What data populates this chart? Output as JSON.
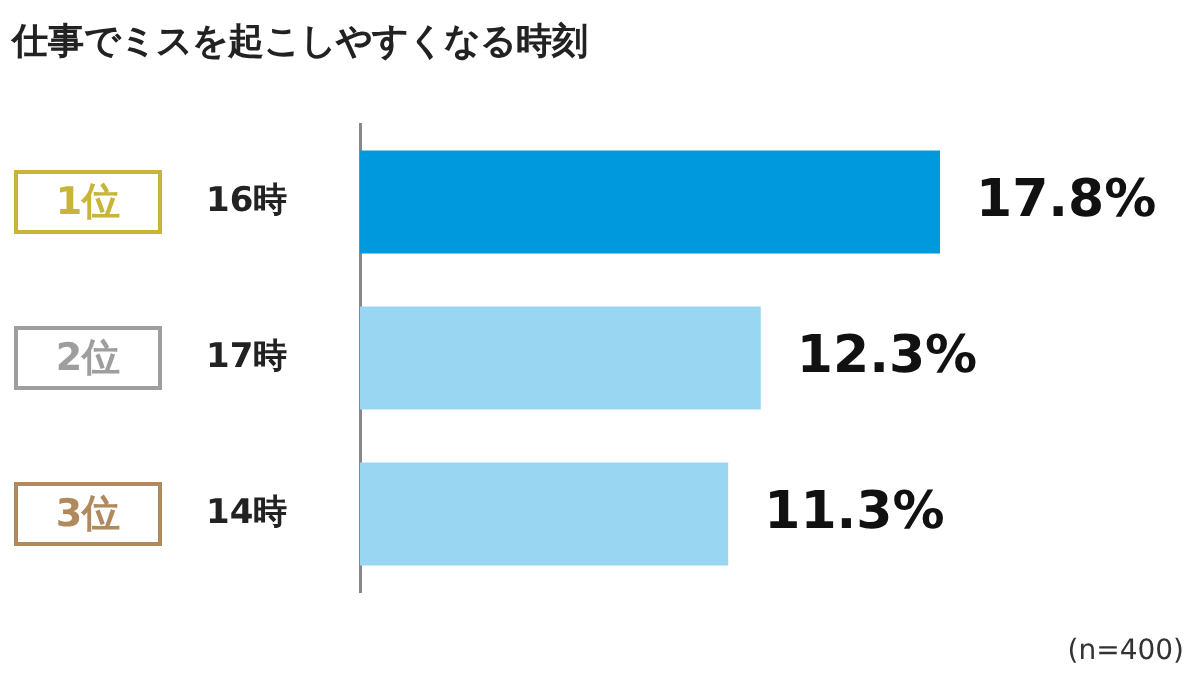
{
  "chart_data": {
    "type": "bar",
    "orientation": "horizontal",
    "title": "仕事でミスを起こしやすくなる時刻",
    "categories": [
      "16時",
      "17時",
      "14時"
    ],
    "values": [
      17.8,
      12.3,
      11.3
    ],
    "colors": [
      "#0099dd",
      "#99d6f1",
      "#99d6f1"
    ],
    "value_labels": [
      "17.8%",
      "12.3%",
      "11.3%"
    ],
    "legend": false,
    "annotations": [
      "1位",
      "2位",
      "3位",
      "(n=400)"
    ]
  }
}
